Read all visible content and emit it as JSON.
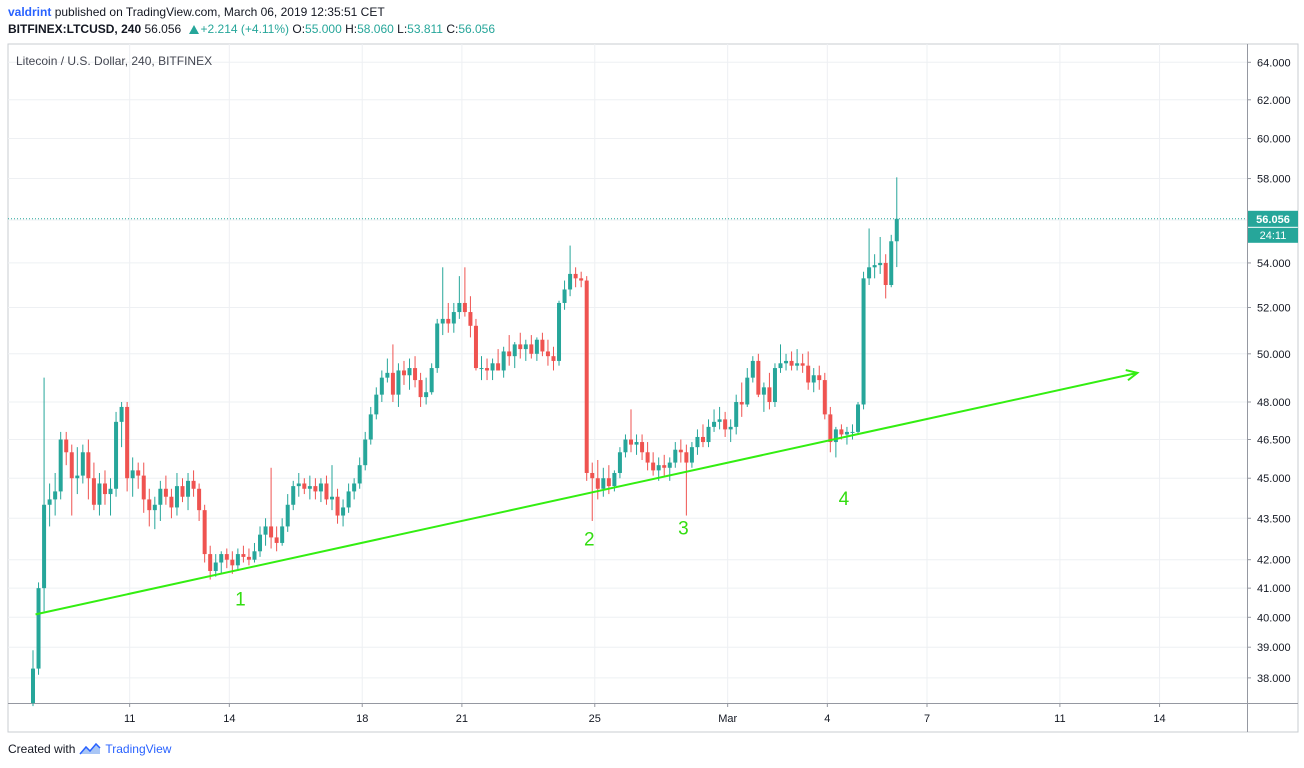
{
  "header": {
    "author": "valdrint",
    "published_text": "published on TradingView.com, March 06, 2019 12:35:51 CET",
    "symbol": "BITFINEX:LTCUSD, 240",
    "last": "56.056",
    "change": "+2.214 (+4.11%)",
    "o_label": "O:",
    "o_value": "55.000",
    "h_label": "H:",
    "h_value": "58.060",
    "l_label": "L:",
    "l_value": "53.811",
    "c_label": "C:",
    "c_value": "56.056"
  },
  "chart_title": "Litecoin / U.S. Dollar, 240, BITFINEX",
  "footer": {
    "created_with": "Created with",
    "brand": "TradingView"
  },
  "colors": {
    "up": "#26a69a",
    "down": "#ef5350",
    "trendline": "#33ee11",
    "annotation": "#33dd11",
    "price_line": "#26a69a",
    "grid": "#eef0f3"
  },
  "chart_data": {
    "type": "candlestick",
    "title": "Litecoin / U.S. Dollar, 240, BITFINEX",
    "y_scale": "log",
    "ylim": [
      37.2,
      65
    ],
    "y_ticks": [
      "38.000",
      "39.000",
      "40.000",
      "41.000",
      "42.000",
      "43.500",
      "45.000",
      "46.500",
      "48.000",
      "50.000",
      "52.000",
      "54.000",
      "56.000",
      "58.000",
      "60.000",
      "62.000",
      "64.000"
    ],
    "x_ticks": [
      {
        "label": "11",
        "date": "2019-02-11"
      },
      {
        "label": "14",
        "date": "2019-02-14"
      },
      {
        "label": "18",
        "date": "2019-02-18"
      },
      {
        "label": "21",
        "date": "2019-02-21"
      },
      {
        "label": "25",
        "date": "2019-02-25"
      },
      {
        "label": "Mar",
        "date": "2019-03-01"
      },
      {
        "label": "4",
        "date": "2019-03-04"
      },
      {
        "label": "7",
        "date": "2019-03-07"
      },
      {
        "label": "11",
        "date": "2019-03-11"
      },
      {
        "label": "14",
        "date": "2019-03-14"
      }
    ],
    "xlim": [
      "2019-02-08",
      "2019-03-16"
    ],
    "last_price_label": "56.056",
    "countdown_label": "24:11",
    "candles": [
      [
        "2019-02-08 00:00",
        37.2,
        38.9,
        37.1,
        38.3
      ],
      [
        "2019-02-08 04:00",
        38.3,
        41.2,
        38.1,
        41.0
      ],
      [
        "2019-02-08 08:00",
        41.0,
        49.0,
        40.2,
        44.0
      ],
      [
        "2019-02-08 12:00",
        44.0,
        44.8,
        43.2,
        44.2
      ],
      [
        "2019-02-08 16:00",
        44.2,
        45.2,
        43.6,
        44.5
      ],
      [
        "2019-02-08 20:00",
        44.5,
        46.8,
        44.2,
        46.5
      ],
      [
        "2019-02-09 00:00",
        46.5,
        46.8,
        45.5,
        46.0
      ],
      [
        "2019-02-09 04:00",
        46.0,
        46.3,
        43.6,
        45.0
      ],
      [
        "2019-02-09 08:00",
        45.0,
        46.2,
        44.4,
        45.1
      ],
      [
        "2019-02-09 12:00",
        45.1,
        46.3,
        44.8,
        46.0
      ],
      [
        "2019-02-09 16:00",
        46.0,
        46.5,
        44.2,
        45.0
      ],
      [
        "2019-02-09 20:00",
        45.0,
        45.6,
        43.8,
        44.0
      ],
      [
        "2019-02-10 00:00",
        44.0,
        45.2,
        43.6,
        44.8
      ],
      [
        "2019-02-10 04:00",
        44.8,
        45.3,
        44.0,
        44.4
      ],
      [
        "2019-02-10 08:00",
        44.4,
        45.0,
        43.6,
        44.6
      ],
      [
        "2019-02-10 12:00",
        44.6,
        47.6,
        44.3,
        47.2
      ],
      [
        "2019-02-10 16:00",
        47.2,
        48.0,
        46.2,
        47.8
      ],
      [
        "2019-02-10 20:00",
        47.8,
        48.0,
        44.5,
        45.0
      ],
      [
        "2019-02-11 00:00",
        45.0,
        45.8,
        44.3,
        45.3
      ],
      [
        "2019-02-11 04:00",
        45.3,
        45.6,
        44.6,
        45.1
      ],
      [
        "2019-02-11 08:00",
        45.1,
        45.6,
        43.7,
        44.2
      ],
      [
        "2019-02-11 12:00",
        44.2,
        44.6,
        43.2,
        43.8
      ],
      [
        "2019-02-11 16:00",
        43.8,
        44.3,
        43.1,
        44.0
      ],
      [
        "2019-02-11 20:00",
        44.0,
        44.9,
        43.4,
        44.6
      ],
      [
        "2019-02-12 00:00",
        44.6,
        45.1,
        44.0,
        44.3
      ],
      [
        "2019-02-12 04:00",
        44.3,
        44.6,
        43.5,
        43.9
      ],
      [
        "2019-02-12 08:00",
        43.9,
        45.2,
        43.6,
        44.7
      ],
      [
        "2019-02-12 12:00",
        44.7,
        45.0,
        44.1,
        44.3
      ],
      [
        "2019-02-12 16:00",
        44.3,
        45.2,
        43.8,
        44.9
      ],
      [
        "2019-02-12 20:00",
        44.9,
        45.3,
        44.3,
        44.6
      ],
      [
        "2019-02-13 00:00",
        44.6,
        44.8,
        43.4,
        43.8
      ],
      [
        "2019-02-13 04:00",
        43.8,
        44.0,
        41.9,
        42.2
      ],
      [
        "2019-02-13 08:00",
        42.2,
        42.5,
        41.3,
        41.6
      ],
      [
        "2019-02-13 12:00",
        41.6,
        42.2,
        41.4,
        41.9
      ],
      [
        "2019-02-13 16:00",
        41.9,
        42.3,
        41.5,
        42.2
      ],
      [
        "2019-02-13 20:00",
        42.2,
        42.4,
        41.7,
        42.0
      ],
      [
        "2019-02-14 00:00",
        42.0,
        42.3,
        41.5,
        41.8
      ],
      [
        "2019-02-14 04:00",
        41.8,
        42.4,
        41.6,
        42.2
      ],
      [
        "2019-02-14 08:00",
        42.2,
        42.5,
        41.9,
        42.1
      ],
      [
        "2019-02-14 12:00",
        42.1,
        42.4,
        41.8,
        42.0
      ],
      [
        "2019-02-14 16:00",
        42.0,
        42.6,
        41.9,
        42.3
      ],
      [
        "2019-02-14 20:00",
        42.3,
        43.2,
        42.1,
        42.9
      ],
      [
        "2019-02-15 00:00",
        42.9,
        43.5,
        42.5,
        43.2
      ],
      [
        "2019-02-15 04:00",
        43.2,
        45.4,
        42.4,
        42.8
      ],
      [
        "2019-02-15 08:00",
        42.8,
        43.2,
        42.3,
        42.6
      ],
      [
        "2019-02-15 12:00",
        42.6,
        43.5,
        42.5,
        43.2
      ],
      [
        "2019-02-15 16:00",
        43.2,
        44.4,
        43.0,
        44.0
      ],
      [
        "2019-02-15 20:00",
        44.0,
        44.9,
        43.8,
        44.7
      ],
      [
        "2019-02-16 00:00",
        44.7,
        45.2,
        44.3,
        44.8
      ],
      [
        "2019-02-16 04:00",
        44.8,
        45.0,
        44.4,
        44.6
      ],
      [
        "2019-02-16 08:00",
        44.6,
        45.1,
        44.2,
        44.7
      ],
      [
        "2019-02-16 12:00",
        44.7,
        45.0,
        44.2,
        44.5
      ],
      [
        "2019-02-16 16:00",
        44.5,
        45.0,
        44.1,
        44.8
      ],
      [
        "2019-02-16 20:00",
        44.8,
        45.1,
        44.0,
        44.2
      ],
      [
        "2019-02-17 00:00",
        44.2,
        45.5,
        43.8,
        44.3
      ],
      [
        "2019-02-17 04:00",
        44.3,
        44.6,
        43.3,
        43.6
      ],
      [
        "2019-02-17 08:00",
        43.6,
        44.2,
        43.2,
        43.9
      ],
      [
        "2019-02-17 12:00",
        43.9,
        44.8,
        43.7,
        44.5
      ],
      [
        "2019-02-17 16:00",
        44.5,
        45.0,
        44.2,
        44.8
      ],
      [
        "2019-02-17 20:00",
        44.8,
        45.8,
        44.6,
        45.5
      ],
      [
        "2019-02-18 00:00",
        45.5,
        46.8,
        45.3,
        46.5
      ],
      [
        "2019-02-18 04:00",
        46.5,
        47.8,
        46.3,
        47.5
      ],
      [
        "2019-02-18 08:00",
        47.5,
        48.6,
        47.3,
        48.3
      ],
      [
        "2019-02-18 12:00",
        48.3,
        49.3,
        48.0,
        49.0
      ],
      [
        "2019-02-18 16:00",
        49.0,
        49.8,
        48.8,
        49.2
      ],
      [
        "2019-02-18 20:00",
        49.2,
        50.4,
        48.0,
        48.3
      ],
      [
        "2019-02-19 00:00",
        48.3,
        49.6,
        47.8,
        49.3
      ],
      [
        "2019-02-19 04:00",
        49.3,
        49.7,
        48.7,
        49.1
      ],
      [
        "2019-02-19 08:00",
        49.1,
        49.8,
        48.5,
        49.4
      ],
      [
        "2019-02-19 12:00",
        49.4,
        49.9,
        48.6,
        48.9
      ],
      [
        "2019-02-19 16:00",
        48.9,
        49.2,
        47.8,
        48.2
      ],
      [
        "2019-02-19 20:00",
        48.2,
        49.0,
        47.9,
        48.4
      ],
      [
        "2019-02-20 00:00",
        48.4,
        49.6,
        48.3,
        49.4
      ],
      [
        "2019-02-20 04:00",
        49.4,
        51.5,
        49.2,
        51.3
      ],
      [
        "2019-02-20 08:00",
        51.3,
        53.8,
        50.8,
        51.5
      ],
      [
        "2019-02-20 12:00",
        51.5,
        52.2,
        50.9,
        51.3
      ],
      [
        "2019-02-20 16:00",
        51.3,
        52.2,
        50.9,
        51.8
      ],
      [
        "2019-02-20 20:00",
        51.8,
        53.4,
        51.5,
        52.2
      ],
      [
        "2019-02-21 00:00",
        52.2,
        53.8,
        51.6,
        51.8
      ],
      [
        "2019-02-21 04:00",
        51.8,
        52.5,
        50.7,
        51.2
      ],
      [
        "2019-02-21 08:00",
        51.2,
        51.5,
        49.3,
        49.4
      ],
      [
        "2019-02-21 12:00",
        49.4,
        49.9,
        48.9,
        49.4
      ],
      [
        "2019-02-21 16:00",
        49.4,
        49.8,
        48.9,
        49.3
      ],
      [
        "2019-02-21 20:00",
        49.3,
        49.8,
        48.9,
        49.6
      ],
      [
        "2019-02-22 00:00",
        49.6,
        50.2,
        49.3,
        49.3
      ],
      [
        "2019-02-22 04:00",
        49.3,
        50.3,
        49.0,
        50.1
      ],
      [
        "2019-02-22 08:00",
        50.1,
        50.8,
        49.5,
        49.9
      ],
      [
        "2019-02-22 12:00",
        49.9,
        50.5,
        49.4,
        50.4
      ],
      [
        "2019-02-22 16:00",
        50.4,
        50.9,
        49.8,
        50.2
      ],
      [
        "2019-02-22 20:00",
        50.2,
        50.6,
        49.7,
        50.4
      ],
      [
        "2019-02-23 00:00",
        50.4,
        50.8,
        49.8,
        50.0
      ],
      [
        "2019-02-23 04:00",
        50.0,
        50.7,
        49.7,
        50.6
      ],
      [
        "2019-02-23 08:00",
        50.6,
        50.9,
        49.9,
        50.1
      ],
      [
        "2019-02-23 12:00",
        50.1,
        50.6,
        49.5,
        49.9
      ],
      [
        "2019-02-23 16:00",
        49.9,
        50.3,
        49.3,
        49.7
      ],
      [
        "2019-02-23 20:00",
        49.7,
        52.3,
        49.5,
        52.2
      ],
      [
        "2019-02-24 00:00",
        52.2,
        53.2,
        51.9,
        52.8
      ],
      [
        "2019-02-24 04:00",
        52.8,
        54.8,
        52.5,
        53.5
      ],
      [
        "2019-02-24 08:00",
        53.5,
        53.8,
        52.9,
        53.3
      ],
      [
        "2019-02-24 12:00",
        53.3,
        53.6,
        52.9,
        53.2
      ],
      [
        "2019-02-24 16:00",
        53.2,
        53.4,
        44.9,
        45.2
      ],
      [
        "2019-02-24 20:00",
        45.2,
        45.6,
        43.4,
        45.0
      ],
      [
        "2019-02-25 00:00",
        45.0,
        45.7,
        44.2,
        44.6
      ],
      [
        "2019-02-25 04:00",
        44.6,
        45.4,
        44.3,
        45.0
      ],
      [
        "2019-02-25 08:00",
        45.0,
        45.5,
        44.4,
        44.7
      ],
      [
        "2019-02-25 12:00",
        44.7,
        45.3,
        44.5,
        45.2
      ],
      [
        "2019-02-25 16:00",
        45.2,
        46.2,
        45.0,
        46.0
      ],
      [
        "2019-02-25 20:00",
        46.0,
        46.7,
        45.8,
        46.5
      ],
      [
        "2019-02-26 00:00",
        46.5,
        47.7,
        46.0,
        46.3
      ],
      [
        "2019-02-26 04:00",
        46.3,
        46.7,
        45.9,
        46.4
      ],
      [
        "2019-02-26 08:00",
        46.4,
        46.7,
        45.7,
        46.0
      ],
      [
        "2019-02-26 12:00",
        46.0,
        46.4,
        45.3,
        45.6
      ],
      [
        "2019-02-26 16:00",
        45.6,
        46.0,
        45.1,
        45.3
      ],
      [
        "2019-02-26 20:00",
        45.3,
        45.8,
        44.9,
        45.5
      ],
      [
        "2019-02-27 00:00",
        45.5,
        45.9,
        45.1,
        45.4
      ],
      [
        "2019-02-27 04:00",
        45.4,
        45.8,
        44.9,
        45.6
      ],
      [
        "2019-02-27 08:00",
        45.6,
        46.4,
        45.4,
        46.1
      ],
      [
        "2019-02-27 12:00",
        46.1,
        46.5,
        45.6,
        46.0
      ],
      [
        "2019-02-27 16:00",
        46.0,
        46.3,
        43.6,
        45.6
      ],
      [
        "2019-02-27 20:00",
        45.6,
        46.4,
        45.4,
        46.2
      ],
      [
        "2019-02-28 00:00",
        46.2,
        46.9,
        45.9,
        46.6
      ],
      [
        "2019-02-28 04:00",
        46.6,
        47.1,
        46.2,
        46.4
      ],
      [
        "2019-02-28 08:00",
        46.4,
        47.3,
        46.2,
        47.0
      ],
      [
        "2019-02-28 12:00",
        47.0,
        47.7,
        46.8,
        47.2
      ],
      [
        "2019-02-28 16:00",
        47.2,
        47.8,
        46.9,
        47.3
      ],
      [
        "2019-02-28 20:00",
        47.3,
        47.6,
        46.6,
        46.9
      ],
      [
        "2019-03-01 00:00",
        46.9,
        47.3,
        46.4,
        47.0
      ],
      [
        "2019-03-01 04:00",
        47.0,
        48.3,
        46.7,
        48.0
      ],
      [
        "2019-03-01 08:00",
        48.0,
        48.8,
        47.4,
        47.9
      ],
      [
        "2019-03-01 12:00",
        47.9,
        49.4,
        47.8,
        49.0
      ],
      [
        "2019-03-01 16:00",
        49.0,
        49.9,
        48.8,
        49.7
      ],
      [
        "2019-03-01 20:00",
        49.7,
        50.0,
        48.2,
        48.3
      ],
      [
        "2019-03-02 00:00",
        48.3,
        48.8,
        47.6,
        48.6
      ],
      [
        "2019-03-02 04:00",
        48.6,
        49.2,
        47.7,
        48.0
      ],
      [
        "2019-03-02 08:00",
        48.0,
        49.6,
        47.8,
        49.4
      ],
      [
        "2019-03-02 12:00",
        49.4,
        50.4,
        49.2,
        49.6
      ],
      [
        "2019-03-02 16:00",
        49.6,
        50.0,
        49.3,
        49.7
      ],
      [
        "2019-03-02 20:00",
        49.7,
        50.1,
        49.3,
        49.5
      ],
      [
        "2019-03-03 00:00",
        49.5,
        50.2,
        49.3,
        49.6
      ],
      [
        "2019-03-03 04:00",
        49.6,
        50.0,
        49.2,
        49.5
      ],
      [
        "2019-03-03 08:00",
        49.5,
        50.1,
        48.5,
        48.8
      ],
      [
        "2019-03-03 12:00",
        48.8,
        49.4,
        48.4,
        49.1
      ],
      [
        "2019-03-03 16:00",
        49.1,
        49.5,
        48.5,
        48.9
      ],
      [
        "2019-03-03 20:00",
        48.9,
        49.2,
        47.3,
        47.5
      ],
      [
        "2019-03-04 00:00",
        47.5,
        47.8,
        46.0,
        46.4
      ],
      [
        "2019-03-04 04:00",
        46.4,
        47.0,
        45.8,
        46.9
      ],
      [
        "2019-03-04 08:00",
        46.9,
        47.1,
        46.5,
        46.7
      ],
      [
        "2019-03-04 12:00",
        46.7,
        47.0,
        46.3,
        46.8
      ],
      [
        "2019-03-04 16:00",
        46.8,
        47.1,
        46.5,
        46.8
      ],
      [
        "2019-03-04 20:00",
        46.8,
        48.0,
        46.7,
        47.9
      ],
      [
        "2019-03-05 00:00",
        47.9,
        53.6,
        47.7,
        53.3
      ],
      [
        "2019-03-05 04:00",
        53.3,
        55.6,
        53.0,
        53.8
      ],
      [
        "2019-03-05 08:00",
        53.8,
        54.4,
        53.3,
        53.9
      ],
      [
        "2019-03-05 12:00",
        53.9,
        55.2,
        53.5,
        54.0
      ],
      [
        "2019-03-05 16:00",
        54.0,
        54.4,
        52.4,
        53.0
      ],
      [
        "2019-03-05 20:00",
        53.0,
        55.3,
        52.9,
        55.0
      ],
      [
        "2019-03-06 00:00",
        55.0,
        58.06,
        53.811,
        56.056
      ]
    ],
    "trendline": {
      "start": {
        "date": "2019-02-08 04:00",
        "price": 40.1
      },
      "end": {
        "date": "2019-03-13 08:00",
        "price": 49.2
      },
      "arrow": true
    },
    "annotations": [
      {
        "text": "1",
        "date": "2019-02-14 08:00",
        "price": 40.4
      },
      {
        "text": "2",
        "date": "2019-02-24 20:00",
        "price": 42.5
      },
      {
        "text": "3",
        "date": "2019-02-27 16:00",
        "price": 42.9
      },
      {
        "text": "4",
        "date": "2019-03-04 12:00",
        "price": 44.0
      }
    ]
  }
}
